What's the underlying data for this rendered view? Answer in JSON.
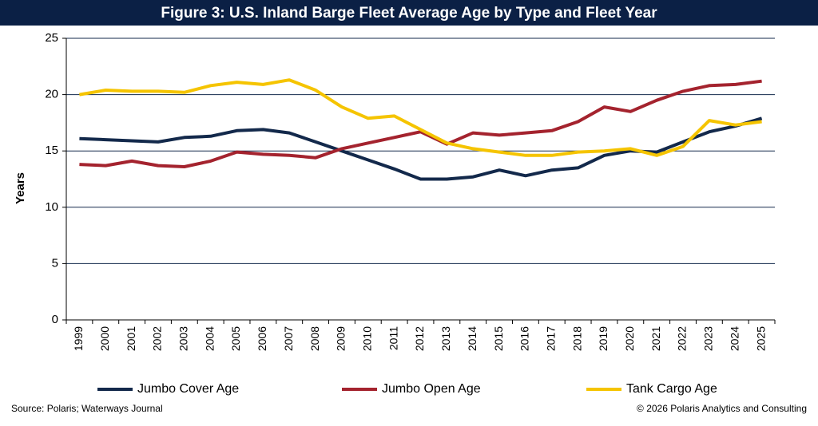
{
  "chart_data": {
    "type": "line",
    "title": "Figure 3: U.S. Inland Barge Fleet Average Age by Type and Fleet Year",
    "y_label": "Years",
    "categories": [
      "1999",
      "2000",
      "2001",
      "2002",
      "2003",
      "2004",
      "2005",
      "2006",
      "2007",
      "2008",
      "2009",
      "2010",
      "2011",
      "2012",
      "2013",
      "2014",
      "2015",
      "2016",
      "2017",
      "2018",
      "2019",
      "2020",
      "2021",
      "2022",
      "2023",
      "2024",
      "2025"
    ],
    "series": [
      {
        "name": "Jumbo Cover Age",
        "color": "#13294b",
        "values": [
          16.1,
          16.0,
          15.9,
          15.8,
          16.2,
          16.3,
          16.8,
          16.9,
          16.6,
          15.8,
          15.0,
          14.2,
          13.4,
          12.5,
          12.5,
          12.7,
          13.3,
          12.8,
          13.3,
          13.5,
          14.6,
          15.0,
          14.9,
          15.8,
          16.7,
          17.2,
          17.9
        ]
      },
      {
        "name": "Jumbo Open Age",
        "color": "#a4232e",
        "values": [
          13.8,
          13.7,
          14.1,
          13.7,
          13.6,
          14.1,
          14.9,
          14.7,
          14.6,
          14.4,
          15.2,
          15.7,
          16.2,
          16.7,
          15.6,
          16.6,
          16.4,
          16.6,
          16.8,
          17.6,
          18.9,
          18.5,
          19.5,
          20.3,
          20.8,
          20.9,
          21.2
        ]
      },
      {
        "name": "Tank Cargo Age",
        "color": "#f5c400",
        "values": [
          20.0,
          20.4,
          20.3,
          20.3,
          20.2,
          20.8,
          21.1,
          20.9,
          21.3,
          20.4,
          18.9,
          17.9,
          18.1,
          16.9,
          15.7,
          15.2,
          14.9,
          14.6,
          14.6,
          14.9,
          15.0,
          15.2,
          14.6,
          15.4,
          17.7,
          17.3,
          17.6
        ]
      }
    ],
    "ylim": [
      0,
      25
    ],
    "yticks": [
      0,
      5,
      10,
      15,
      20,
      25
    ],
    "grid": true,
    "legend": "bottom",
    "source": "Source: Polaris; Waterways Journal",
    "copyright": "© 2026 Polaris Analytics and Consulting"
  }
}
